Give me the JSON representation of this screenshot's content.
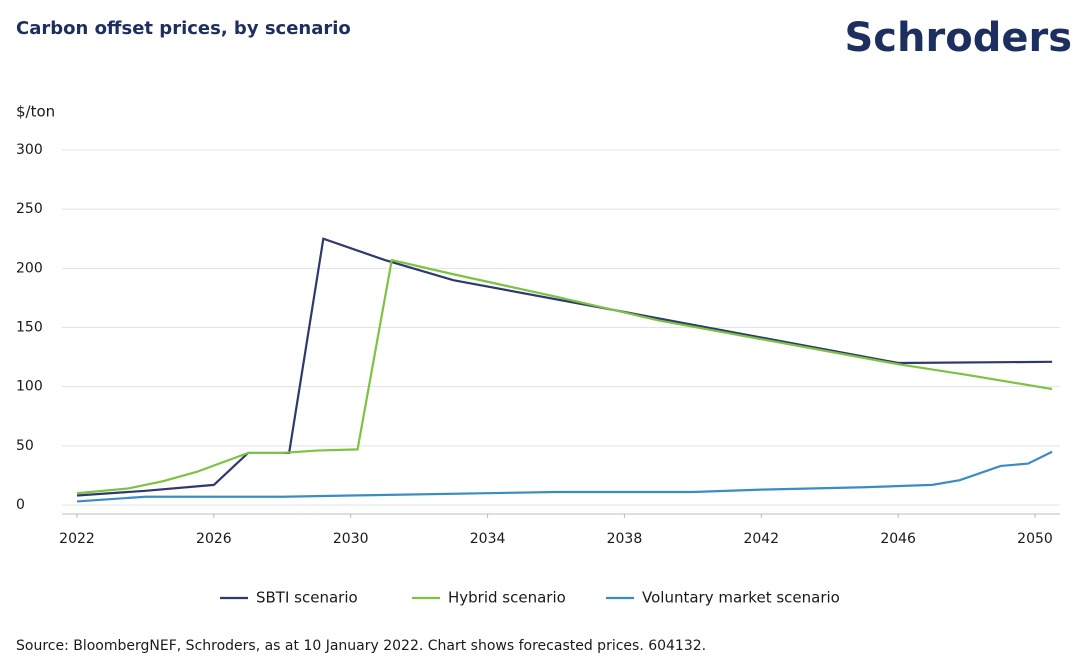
{
  "chart_data": {
    "type": "line",
    "title": "Carbon offset prices, by scenario",
    "logo": "Schroders",
    "y_label": "$/ton",
    "source": "Source: BloombergNEF, Schroders, as at 10 January 2022. Chart shows forecasted prices. 604132.",
    "xlim": [
      2022,
      2050.5
    ],
    "xticks": [
      2022,
      2026,
      2030,
      2034,
      2038,
      2042,
      2046,
      2050
    ],
    "ylim": [
      0,
      300
    ],
    "yticks": [
      0,
      50,
      100,
      150,
      200,
      250,
      300
    ],
    "grid": true,
    "series": [
      {
        "name": "SBTI scenario",
        "color": "#2e3a6b",
        "x": [
          2022,
          2024,
          2026,
          2027,
          2028.2,
          2029.2,
          2031,
          2033,
          2046,
          2050.5
        ],
        "values": [
          8,
          12,
          17,
          44,
          44,
          225,
          207,
          190,
          120,
          121
        ]
      },
      {
        "name": "Hybrid scenario",
        "color": "#7dc242",
        "x": [
          2022,
          2023.5,
          2024.5,
          2025.5,
          2027,
          2028,
          2029,
          2030.2,
          2031.2,
          2033,
          2036,
          2039,
          2046,
          2048,
          2050.5
        ],
        "values": [
          10,
          14,
          20,
          28,
          44,
          44,
          46,
          47,
          207,
          195,
          176,
          156,
          119,
          110,
          98
        ]
      },
      {
        "name": "Voluntary market scenario",
        "color": "#3a8dc3",
        "x": [
          2022,
          2024,
          2028,
          2030,
          2034,
          2036,
          2040,
          2042,
          2045,
          2047,
          2047.8,
          2049,
          2049.8,
          2050.5
        ],
        "values": [
          3,
          7,
          7,
          8,
          10,
          11,
          11,
          13,
          15,
          17,
          21,
          33,
          35,
          45
        ]
      }
    ]
  }
}
